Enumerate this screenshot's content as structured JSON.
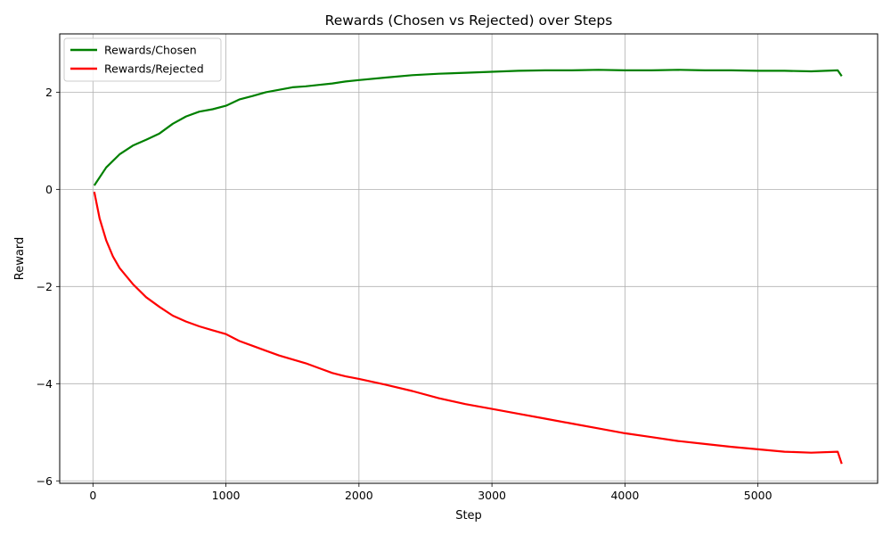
{
  "chart_data": {
    "type": "line",
    "title": "Rewards (Chosen vs Rejected) over Steps",
    "xlabel": "Step",
    "ylabel": "Reward",
    "xlim": [
      -250,
      5900
    ],
    "ylim": [
      -6.05,
      3.2
    ],
    "x_ticks": [
      0,
      1000,
      2000,
      3000,
      4000,
      5000
    ],
    "x_tick_labels": [
      "0",
      "1000",
      "2000",
      "3000",
      "4000",
      "5000"
    ],
    "y_ticks": [
      -6,
      -4,
      -2,
      0,
      2
    ],
    "y_tick_labels": [
      "−6",
      "−4",
      "−2",
      "0",
      "2"
    ],
    "grid": true,
    "legend_position": "top-left",
    "series": [
      {
        "name": "Rewards/Chosen",
        "color": "#008000",
        "x": [
          10,
          100,
          200,
          300,
          400,
          500,
          600,
          700,
          800,
          900,
          1000,
          1100,
          1200,
          1300,
          1400,
          1500,
          1600,
          1700,
          1800,
          1900,
          2000,
          2200,
          2400,
          2600,
          2800,
          3000,
          3200,
          3400,
          3600,
          3800,
          4000,
          4200,
          4400,
          4600,
          4800,
          5000,
          5200,
          5400,
          5600,
          5630
        ],
        "y": [
          0.08,
          0.45,
          0.72,
          0.9,
          1.02,
          1.15,
          1.35,
          1.5,
          1.6,
          1.65,
          1.72,
          1.85,
          1.92,
          2.0,
          2.05,
          2.1,
          2.12,
          2.15,
          2.18,
          2.22,
          2.25,
          2.3,
          2.35,
          2.38,
          2.4,
          2.42,
          2.44,
          2.45,
          2.45,
          2.46,
          2.45,
          2.45,
          2.46,
          2.45,
          2.45,
          2.44,
          2.44,
          2.43,
          2.45,
          2.33
        ]
      },
      {
        "name": "Rewards/Rejected",
        "color": "#ff0000",
        "x": [
          10,
          50,
          100,
          150,
          200,
          300,
          400,
          500,
          600,
          700,
          800,
          900,
          1000,
          1100,
          1200,
          1300,
          1400,
          1500,
          1600,
          1700,
          1800,
          1900,
          2000,
          2200,
          2400,
          2600,
          2800,
          3000,
          3200,
          3400,
          3600,
          3800,
          4000,
          4200,
          4400,
          4600,
          4800,
          5000,
          5200,
          5400,
          5600,
          5630
        ],
        "y": [
          -0.05,
          -0.6,
          -1.05,
          -1.38,
          -1.62,
          -1.95,
          -2.22,
          -2.42,
          -2.6,
          -2.72,
          -2.82,
          -2.9,
          -2.98,
          -3.12,
          -3.22,
          -3.32,
          -3.42,
          -3.5,
          -3.58,
          -3.68,
          -3.78,
          -3.85,
          -3.9,
          -4.02,
          -4.15,
          -4.3,
          -4.42,
          -4.52,
          -4.62,
          -4.72,
          -4.82,
          -4.92,
          -5.02,
          -5.1,
          -5.18,
          -5.24,
          -5.3,
          -5.35,
          -5.4,
          -5.42,
          -5.4,
          -5.65
        ]
      }
    ]
  }
}
